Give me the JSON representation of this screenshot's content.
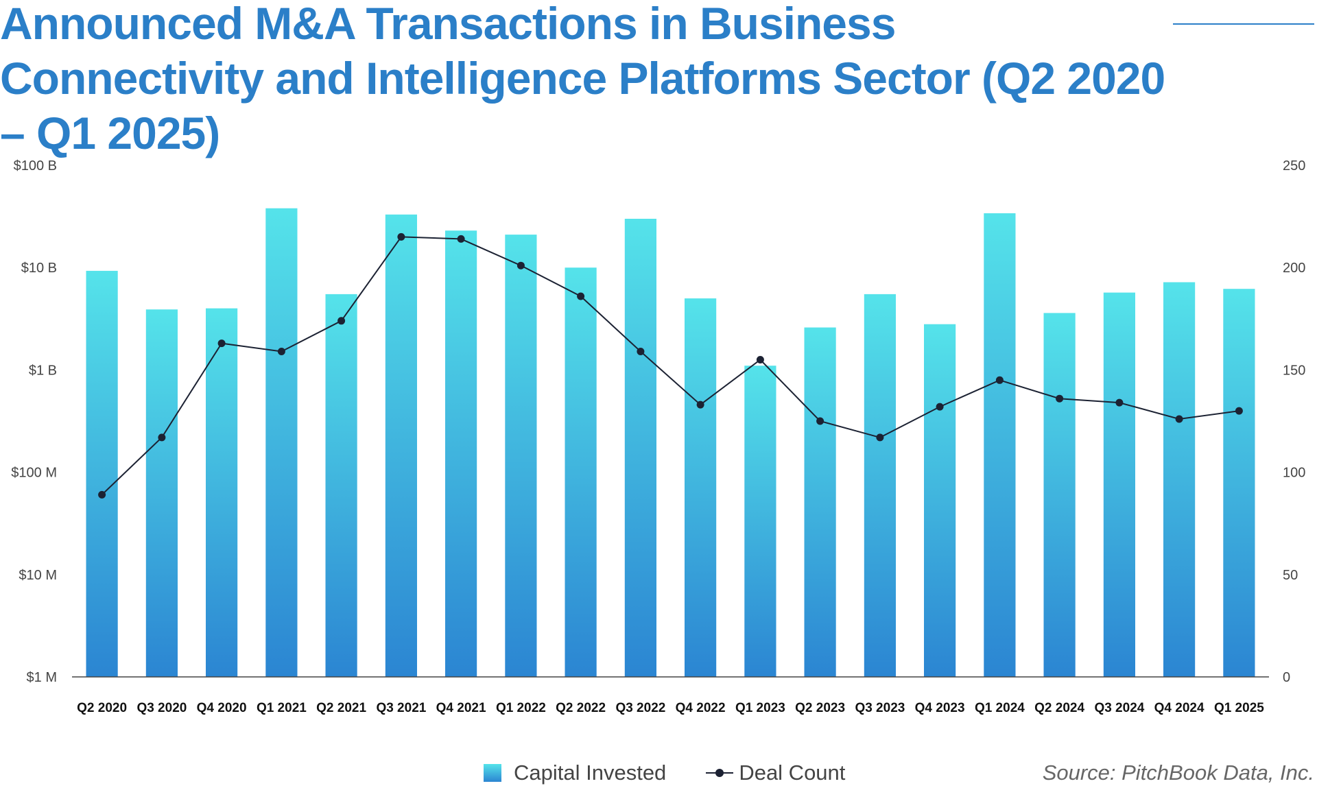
{
  "title": "Announced M&A Transactions in Business Connectivity and Intelligence Platforms Sector (Q2 2020 – Q1 2025)",
  "source": "Source: PitchBook Data, Inc.",
  "colors": {
    "title": "#2b7fc8",
    "bar_top": "#55e3ea",
    "bar_bottom": "#2b85d2",
    "line": "#1c2233",
    "axis": "#444444"
  },
  "legend": {
    "bars_label": "Capital Invested",
    "line_label": "Deal Count"
  },
  "chart_data": {
    "type": "bar",
    "categories": [
      "Q2 2020",
      "Q3 2020",
      "Q4 2020",
      "Q1 2021",
      "Q2 2021",
      "Q3 2021",
      "Q4 2021",
      "Q1 2022",
      "Q2 2022",
      "Q3 2022",
      "Q4 2022",
      "Q1 2023",
      "Q2 2023",
      "Q3 2023",
      "Q4 2023",
      "Q1 2024",
      "Q2 2024",
      "Q3 2024",
      "Q4 2024",
      "Q1 2025"
    ],
    "series": [
      {
        "name": "Capital Invested",
        "type": "bar",
        "axis": "left",
        "unit": "USD",
        "values": [
          9300000000,
          3900000000,
          4000000000,
          38000000000,
          5500000000,
          33000000000,
          23000000000,
          21000000000,
          10000000000,
          30000000000,
          5000000000,
          1100000000,
          2600000000,
          5500000000,
          2800000000,
          34000000000,
          3600000000,
          5700000000,
          7200000000,
          6200000000
        ]
      },
      {
        "name": "Deal Count",
        "type": "line",
        "axis": "right",
        "values": [
          89,
          117,
          163,
          159,
          174,
          215,
          214,
          201,
          186,
          159,
          133,
          155,
          125,
          117,
          132,
          145,
          136,
          134,
          126,
          130
        ]
      }
    ],
    "y_left": {
      "scale": "log",
      "ylim": [
        1000000,
        100000000000
      ],
      "ticks": [
        1000000,
        10000000,
        100000000,
        1000000000,
        10000000000,
        100000000000
      ],
      "tick_labels": [
        "$1 M",
        "$10 M",
        "$100 M",
        "$1 B",
        "$10 B",
        "$100 B"
      ]
    },
    "y_right": {
      "scale": "linear",
      "ylim": [
        0,
        250
      ],
      "ticks": [
        0,
        50,
        100,
        150,
        200,
        250
      ],
      "tick_labels": [
        "0",
        "50",
        "100",
        "150",
        "200",
        "250"
      ]
    },
    "grid": false,
    "legend_position": "bottom-center"
  }
}
